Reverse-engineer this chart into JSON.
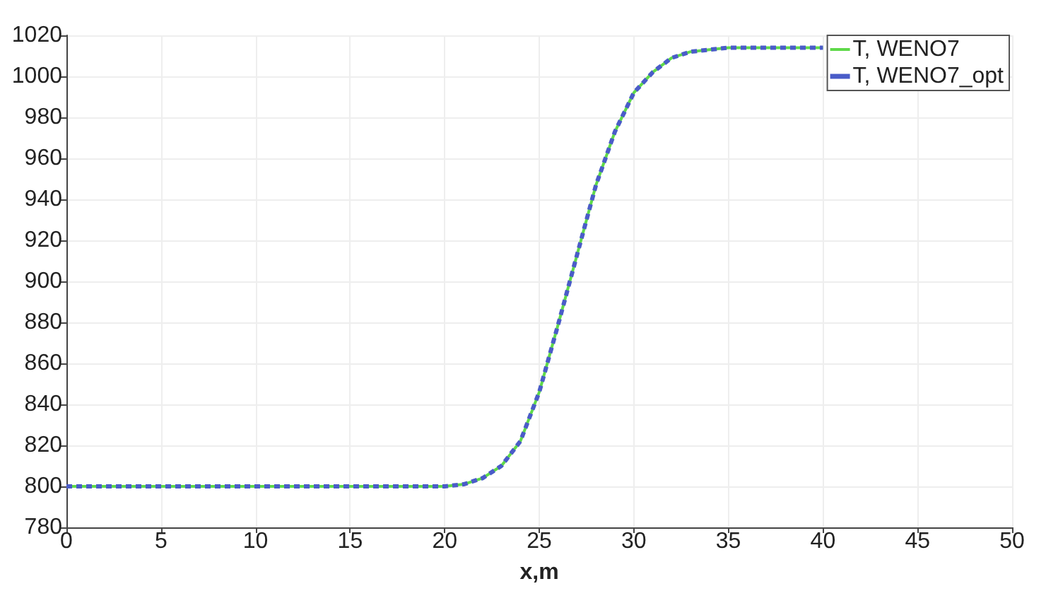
{
  "chart_data": {
    "type": "line",
    "xlabel": "x,m",
    "x": [
      0,
      5,
      10,
      15,
      20,
      21,
      22,
      23,
      24,
      25,
      26,
      27,
      28,
      29,
      30,
      31,
      32,
      33,
      34,
      35,
      37,
      40
    ],
    "series": [
      {
        "name": "T, WENO7",
        "color": "#5fd94a",
        "line_style": "solid",
        "values": [
          800,
          800,
          800,
          800,
          800,
          801,
          804,
          810,
          822,
          846,
          879,
          913,
          947,
          973,
          992,
          1002,
          1009,
          1012,
          1013,
          1014,
          1014,
          1014
        ]
      },
      {
        "name": "T, WENO7_opt",
        "color": "#4a5cc8",
        "line_style": "dotted",
        "values": [
          800,
          800,
          800,
          800,
          800,
          801,
          804,
          810,
          822,
          846,
          879,
          913,
          947,
          973,
          992,
          1002,
          1009,
          1012,
          1013,
          1014,
          1014,
          1014
        ]
      }
    ],
    "xlim": [
      0,
      50
    ],
    "xticks": [
      0,
      5,
      10,
      15,
      20,
      25,
      30,
      35,
      40,
      45,
      50
    ],
    "ylim": [
      780,
      1020
    ],
    "yticks": [
      780,
      800,
      820,
      840,
      860,
      880,
      900,
      920,
      940,
      960,
      980,
      1000,
      1020
    ],
    "grid": true,
    "legend": "top right",
    "marker": "none"
  }
}
